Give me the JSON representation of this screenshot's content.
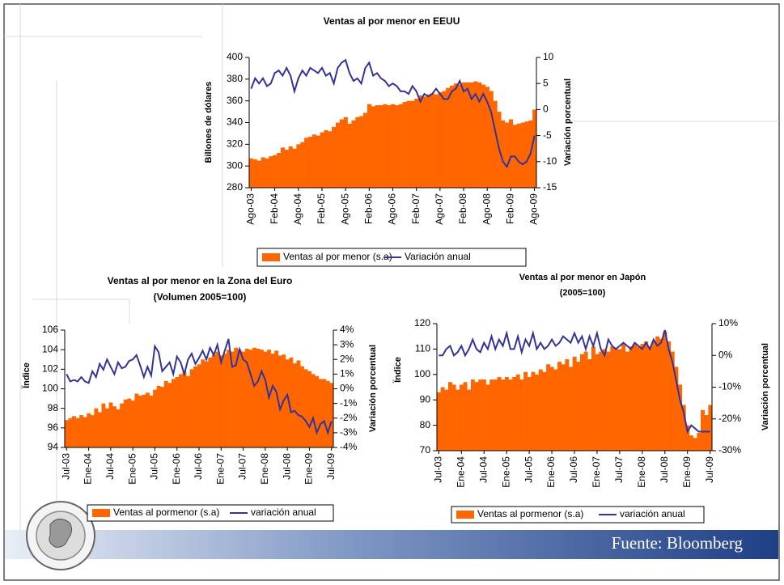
{
  "chart_data": [
    {
      "type": "bar_line",
      "title": "Ventas al por menor en EEUU",
      "ylabel": "Billones de dólares",
      "y2label": "Variación porcentual",
      "categories": [
        "Ago-03",
        null,
        null,
        null,
        null,
        null,
        "Feb-04",
        null,
        null,
        null,
        null,
        null,
        "Ago-04",
        null,
        null,
        null,
        null,
        null,
        "Feb-05",
        null,
        null,
        null,
        null,
        null,
        "Ago-05",
        null,
        null,
        null,
        null,
        null,
        "Feb-06",
        null,
        null,
        null,
        null,
        null,
        "Ago-06",
        null,
        null,
        null,
        null,
        null,
        "Feb-07",
        null,
        null,
        null,
        null,
        null,
        "Ago-07",
        null,
        null,
        null,
        null,
        null,
        "Feb-08",
        null,
        null,
        null,
        null,
        null,
        "Ago-08",
        null,
        null,
        null,
        null,
        null,
        "Feb-09",
        null,
        null,
        null,
        null,
        null,
        "Ago-09"
      ],
      "series": [
        {
          "name": "Ventas al por menor (s.a)",
          "type": "bar",
          "color": "#ff6600",
          "values": [
            307,
            306,
            305,
            308,
            307,
            309,
            310,
            312,
            317,
            315,
            318,
            316,
            320,
            322,
            326,
            327,
            329,
            328,
            331,
            333,
            332,
            336,
            340,
            343,
            345,
            339,
            342,
            345,
            346,
            349,
            357,
            355,
            356,
            356,
            357,
            356,
            357,
            356,
            357,
            359,
            360,
            360,
            362,
            365,
            364,
            366,
            367,
            366,
            368,
            369,
            372,
            374,
            376,
            375,
            377,
            377,
            377,
            378,
            377,
            375,
            373,
            369,
            360,
            350,
            342,
            340,
            343,
            338,
            339,
            340,
            341,
            342,
            352
          ]
        },
        {
          "name": "Variación anual",
          "type": "line",
          "axis": "y2",
          "color": "#333399",
          "values": [
            4,
            6,
            5,
            6,
            4.5,
            5,
            7,
            7.5,
            6.5,
            8,
            6.5,
            3.5,
            6,
            7.5,
            6.5,
            8,
            7.5,
            7,
            8,
            6.5,
            7,
            5,
            8,
            9,
            9.5,
            7,
            5.5,
            6,
            5,
            8,
            9,
            6.5,
            7,
            6,
            5.5,
            4.5,
            5,
            4.5,
            3.5,
            3.5,
            3,
            4.5,
            3.5,
            1.5,
            3,
            2.5,
            3,
            4,
            3,
            2,
            2,
            3.5,
            4,
            5.5,
            3.5,
            4,
            2,
            3,
            1.5,
            3,
            1.5,
            -0.5,
            -4,
            -7.5,
            -10,
            -11,
            -9,
            -9,
            -10,
            -10.5,
            -10,
            -8.5,
            -5
          ]
        }
      ],
      "ylim": [
        280,
        400
      ],
      "yticks": [
        280,
        300,
        320,
        340,
        360,
        380,
        400
      ],
      "y2lim": [
        -15,
        10
      ],
      "y2ticks": [
        -15,
        -10,
        -5,
        0,
        5,
        10
      ]
    },
    {
      "type": "bar_line",
      "title": "Ventas al por menor en la Zona del Euro",
      "subtitle": "(Volumen 2005=100)",
      "ylabel": "Ïndice",
      "y2label": "Variación porcentual",
      "categories": [
        "Jul-03",
        null,
        null,
        null,
        null,
        null,
        "Ene-04",
        null,
        null,
        null,
        null,
        null,
        "Jul-04",
        null,
        null,
        null,
        null,
        null,
        "Ene-05",
        null,
        null,
        null,
        null,
        null,
        "Jul-05",
        null,
        null,
        null,
        null,
        null,
        "Ene-06",
        null,
        null,
        null,
        null,
        null,
        "Jul-06",
        null,
        null,
        null,
        null,
        null,
        "Ene-07",
        null,
        null,
        null,
        null,
        null,
        "Jul-07",
        null,
        null,
        null,
        null,
        null,
        "Ene-08",
        null,
        null,
        null,
        null,
        null,
        "Jul-08",
        null,
        null,
        null,
        null,
        null,
        "Ene-09",
        null,
        null,
        null,
        null,
        null,
        "Jul-09"
      ],
      "series": [
        {
          "name": "Ventas al pormenor (s.a)",
          "type": "bar",
          "color": "#ff6600",
          "values": [
            96.8,
            97.0,
            97.2,
            97.0,
            97.3,
            97.1,
            97.5,
            97.3,
            98.0,
            97.6,
            98.5,
            98.0,
            98.6,
            98.2,
            97.9,
            98.5,
            98.9,
            99.0,
            98.8,
            99.5,
            99.3,
            99.4,
            99.6,
            99.3,
            99.9,
            100.3,
            100.2,
            100.8,
            100.6,
            101.0,
            101.2,
            101.5,
            101.8,
            101.3,
            102.0,
            102.3,
            102.5,
            103.0,
            102.8,
            103.2,
            103.5,
            103.8,
            103.4,
            103.6,
            104.0,
            103.8,
            104.2,
            104.0,
            103.8,
            104.1,
            104.0,
            104.2,
            104.1,
            104.0,
            103.8,
            104.0,
            103.6,
            103.9,
            103.4,
            103.5,
            103.0,
            103.2,
            102.6,
            102.9,
            102.3,
            102.0,
            101.8,
            101.5,
            101.3,
            101.0,
            101.0,
            100.8,
            100.6
          ]
        },
        {
          "name": "variación anual",
          "type": "line",
          "axis": "y2",
          "color": "#333399",
          "values": [
            1.0,
            0.5,
            0.6,
            0.5,
            0.8,
            0.5,
            0.4,
            1.2,
            0.8,
            1.7,
            1.3,
            2.0,
            1.5,
            1.0,
            1.8,
            1.4,
            1.5,
            1.9,
            2.0,
            2.3,
            1.6,
            0.8,
            1.5,
            0.9,
            2.9,
            2.5,
            1.2,
            1.5,
            1.8,
            1.0,
            2.2,
            1.8,
            1.0,
            2.0,
            2.4,
            1.7,
            2.1,
            2.6,
            2.0,
            2.8,
            2.3,
            3.0,
            1.8,
            2.6,
            3.4,
            1.5,
            1.6,
            2.7,
            2.0,
            1.8,
            1.0,
            0.2,
            0.5,
            1.2,
            0.6,
            -0.6,
            0.2,
            -0.2,
            -1.4,
            -0.8,
            -0.4,
            -1.6,
            -1.5,
            -1.8,
            -1.9,
            -2.2,
            -2.6,
            -2.0,
            -3.0,
            -2.4,
            -2.2,
            -3.0,
            -2.2
          ]
        }
      ],
      "ylim": [
        94,
        106
      ],
      "yticks": [
        94,
        96,
        98,
        100,
        102,
        104,
        106
      ],
      "y2lim": [
        -4,
        4
      ],
      "y2ticks": [
        {
          "value": -4,
          "label": "-4%"
        },
        {
          "value": -3,
          "label": "-3%"
        },
        {
          "value": -2,
          "label": "-2%"
        },
        {
          "value": -1,
          "label": "-1%"
        },
        {
          "value": 0,
          "label": "0%"
        },
        {
          "value": 1,
          "label": "1%"
        },
        {
          "value": 2,
          "label": "2%"
        },
        {
          "value": 3,
          "label": "3%"
        },
        {
          "value": 4,
          "label": "4%"
        }
      ]
    },
    {
      "type": "bar_line",
      "title": "Ventas al por menor en Japón",
      "subtitle": "(2005=100)",
      "ylabel": "Ïndice",
      "y2label": "Variación porcentual",
      "categories": [
        "Jul-03",
        null,
        null,
        null,
        null,
        null,
        "Ene-04",
        null,
        null,
        null,
        null,
        null,
        "Jul-04",
        null,
        null,
        null,
        null,
        null,
        "Ene-05",
        null,
        null,
        null,
        null,
        null,
        "Jul-05",
        null,
        null,
        null,
        null,
        null,
        "Ene-06",
        null,
        null,
        null,
        null,
        null,
        "Jul-06",
        null,
        null,
        null,
        null,
        null,
        "Ene-07",
        null,
        null,
        null,
        null,
        null,
        "Jul-07",
        null,
        null,
        null,
        null,
        null,
        "Ene-08",
        null,
        null,
        null,
        null,
        null,
        "Jul-08",
        null,
        null,
        null,
        null,
        null,
        "Ene-09",
        null,
        null,
        null,
        null,
        null,
        "Jul-09"
      ],
      "series": [
        {
          "name": "Ventas al pormenor (s.a)",
          "type": "bar",
          "color": "#ff6600",
          "values": [
            93,
            95,
            94,
            97,
            96,
            94,
            96,
            97,
            94,
            98,
            97,
            98,
            98,
            96,
            98,
            98,
            99,
            98,
            99,
            98,
            99,
            100,
            98,
            101,
            99,
            101,
            100,
            102,
            101,
            104,
            103,
            102,
            105,
            104,
            106,
            103,
            107,
            105,
            108,
            109,
            106,
            111,
            108,
            109,
            110,
            109,
            111,
            110,
            110,
            112,
            109,
            111,
            112,
            111,
            112,
            113,
            111,
            113,
            115,
            114,
            117,
            113,
            109,
            103,
            96,
            88,
            80,
            76,
            75,
            77,
            86,
            84,
            88
          ]
        },
        {
          "name": "variación anual",
          "type": "line",
          "axis": "y2",
          "color": "#333399",
          "values": [
            0,
            0,
            2,
            3,
            0,
            1,
            3,
            0,
            2,
            5,
            2,
            1,
            4,
            2,
            6,
            2,
            5,
            3,
            7,
            2,
            2,
            6,
            1,
            5,
            3,
            7,
            2,
            4,
            2,
            3,
            5,
            3,
            4,
            6,
            5,
            4,
            7,
            4,
            6,
            2,
            6,
            3,
            7,
            2,
            0,
            5,
            3,
            2,
            3,
            4,
            3,
            2,
            4,
            3,
            2,
            4,
            2,
            5,
            3,
            4,
            8,
            2,
            -2,
            -8,
            -14,
            -18,
            -24,
            -22,
            -23,
            -24,
            -24,
            -24,
            -24
          ]
        }
      ],
      "ylim": [
        70,
        120
      ],
      "yticks": [
        70,
        80,
        90,
        100,
        110,
        120
      ],
      "y2lim": [
        -30,
        10
      ],
      "y2ticks": [
        {
          "value": -30,
          "label": "-30%"
        },
        {
          "value": -20,
          "label": "-20%"
        },
        {
          "value": -10,
          "label": "-10%"
        },
        {
          "value": 0,
          "label": "0%"
        },
        {
          "value": 10,
          "label": "10%"
        }
      ]
    }
  ],
  "footer": {
    "source": "Fuente: Bloomberg"
  }
}
